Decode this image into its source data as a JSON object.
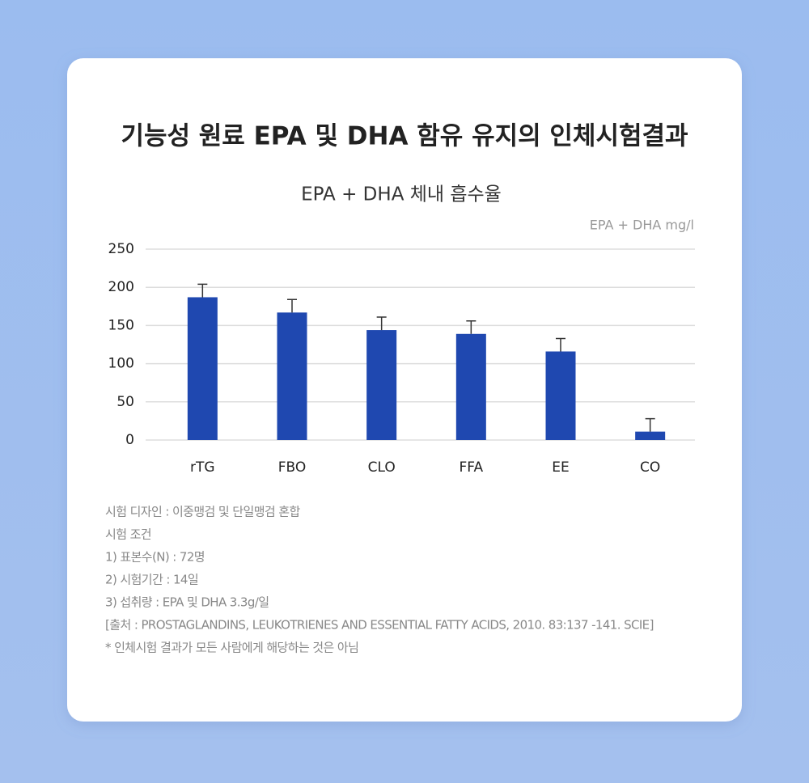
{
  "chart_data": {
    "type": "bar",
    "title": "기능성 원료 EPA 및 DHA 함유 유지의 인체시험결과",
    "subtitle": "EPA + DHA 체내 흡수율",
    "y_label": "EPA + DHA mg/l",
    "categories": [
      "rTG",
      "FBO",
      "CLO",
      "FFA",
      "EE",
      "CO"
    ],
    "values": [
      187,
      167,
      144,
      139,
      116,
      11
    ],
    "errors": [
      17,
      17,
      17,
      17,
      17,
      17
    ],
    "color": "#1f48b0",
    "error_color": "#333333",
    "ylim": [
      0,
      250
    ],
    "yticks": [
      0,
      50,
      100,
      150,
      200,
      250
    ],
    "grid": true,
    "annotations": [
      "시험 디자인 : 이중맹검 및 단일맹검 혼합",
      "시험 조건",
      "1) 표본수(N) : 72명",
      "2) 시험기간 : 14일",
      "3) 섭취량 : EPA 및 DHA 3.3g/일",
      "[출처 : PROSTAGLANDINS, LEUKOTRIENES AND ESSENTIAL FATTY ACIDS, 2010. 83:137 -141. SCIE]",
      "* 인체시험 결과가 모든 사람에게 해당하는 것은 아님"
    ]
  }
}
